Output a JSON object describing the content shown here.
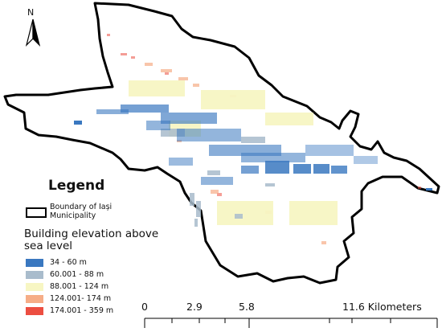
{
  "north_arrow": {
    "label": "N"
  },
  "legend": {
    "title": "Legend",
    "boundary_label": "Boundary of Iași Municipality",
    "elevation_title": "Building elevation above sea level",
    "classes": [
      {
        "label": "34 - 60 m",
        "color": "#3a78c0"
      },
      {
        "label": "60.001 - 88 m",
        "color": "#a9bccc"
      },
      {
        "label": "88.001 - 124 m",
        "color": "#f7f6c3"
      },
      {
        "label": "124.001- 174 m",
        "color": "#f6ad87"
      },
      {
        "label": "174.001 - 359 m",
        "color": "#ec4e41"
      }
    ]
  },
  "scale_bar": {
    "labels": [
      "0",
      "2.9",
      "5.8",
      "11.6 Kilometers"
    ]
  },
  "colors": {
    "boundary": "#000000",
    "background": "#ffffff"
  }
}
